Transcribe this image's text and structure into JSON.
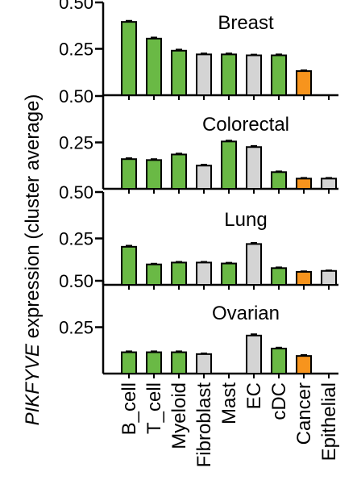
{
  "ylabel": "PIKFYVE expression (cluster average)",
  "ylabel_italic": "PIKFYVE",
  "ylabel_rest": " expression (cluster average)",
  "colors": {
    "green": "#6ab945",
    "gray": "#d4d4d4",
    "orange": "#f7941d",
    "stroke": "#000000"
  },
  "chart_data": {
    "type": "bar",
    "categories": [
      "B_cell",
      "T_cell",
      "Myeloid",
      "Fibroblast",
      "Mast",
      "EC",
      "cDC",
      "Cancer",
      "Epithelial"
    ],
    "bar_color_keys": [
      "green",
      "green",
      "green",
      "gray",
      "green",
      "gray",
      "green",
      "orange",
      "gray"
    ],
    "ylim": [
      0,
      0.5
    ],
    "yticks": [
      "0.50",
      "0.25"
    ],
    "ytick_values": [
      0.5,
      0.25
    ],
    "panels": [
      {
        "title": "Breast",
        "values": [
          0.395,
          0.305,
          0.24,
          0.22,
          0.22,
          0.215,
          0.215,
          0.13,
          null
        ],
        "errors": [
          0.006,
          0.006,
          0.006,
          0.005,
          0.005,
          0.004,
          0.005,
          0.004,
          null
        ]
      },
      {
        "title": "Colorectal",
        "values": [
          0.16,
          0.155,
          0.185,
          0.125,
          0.255,
          0.225,
          0.09,
          0.055,
          0.055
        ],
        "errors": [
          0.005,
          0.005,
          0.005,
          0.005,
          0.005,
          0.006,
          0.004,
          0.004,
          0.004
        ]
      },
      {
        "title": "Lung",
        "values": [
          0.205,
          0.11,
          0.12,
          0.12,
          0.115,
          0.22,
          0.09,
          0.07,
          0.075
        ],
        "errors": [
          0.006,
          0.004,
          0.004,
          0.004,
          0.004,
          0.006,
          0.004,
          0.003,
          0.003
        ]
      },
      {
        "title": "Ovarian",
        "values": [
          0.115,
          0.115,
          0.115,
          0.105,
          null,
          0.205,
          0.135,
          0.095,
          null
        ],
        "errors": [
          0.005,
          0.005,
          0.005,
          0.004,
          null,
          0.007,
          0.005,
          0.005,
          null
        ]
      }
    ]
  }
}
